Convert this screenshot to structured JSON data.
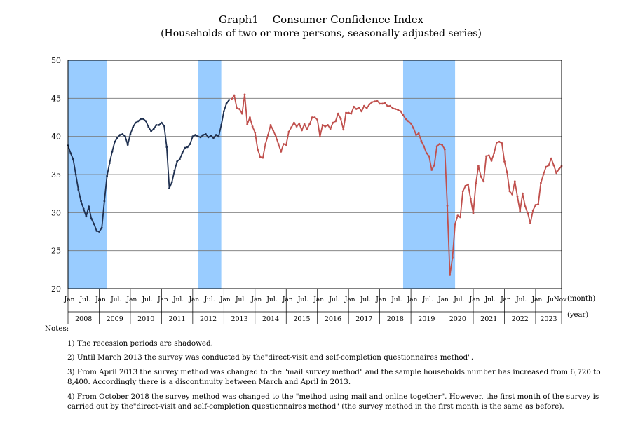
{
  "chart_data": {
    "type": "line",
    "title": "Graph1　 Consumer Confidence Index",
    "subtitle": "(Households of two or more persons, seasonally adjusted series)",
    "xunit": "(month)",
    "yearunit": "(year)",
    "ylim": [
      20,
      50
    ],
    "yticks": [
      20,
      25,
      30,
      35,
      40,
      45,
      50
    ],
    "grid": true,
    "recession_periods": [
      [
        "2008-01",
        "2009-03"
      ],
      [
        "2012-03",
        "2012-11"
      ],
      [
        "2018-10",
        "2020-05"
      ]
    ],
    "years": [
      "2008",
      "2009",
      "2010",
      "2011",
      "2012",
      "2013",
      "2014",
      "2015",
      "2016",
      "2017",
      "2018",
      "2019",
      "2020",
      "2021",
      "2022",
      "2023"
    ],
    "month_labels": [
      "Jan",
      "Jul."
    ],
    "last_month_label": "Nov",
    "series": [
      {
        "color": "#1f3050",
        "points": [
          [
            "2008-01",
            38.8
          ],
          [
            "2008-02",
            37.8
          ],
          [
            "2008-03",
            37.0
          ],
          [
            "2008-04",
            35.0
          ],
          [
            "2008-05",
            33.0
          ],
          [
            "2008-06",
            31.5
          ],
          [
            "2008-07",
            30.5
          ],
          [
            "2008-08",
            29.5
          ],
          [
            "2008-09",
            30.8
          ],
          [
            "2008-10",
            29.2
          ],
          [
            "2008-11",
            28.5
          ],
          [
            "2008-12",
            27.6
          ],
          [
            "2009-01",
            27.5
          ],
          [
            "2009-02",
            28.0
          ],
          [
            "2009-03",
            31.5
          ],
          [
            "2009-04",
            34.8
          ],
          [
            "2009-05",
            36.5
          ],
          [
            "2009-06",
            38.0
          ],
          [
            "2009-07",
            39.3
          ],
          [
            "2009-08",
            39.8
          ],
          [
            "2009-09",
            40.2
          ],
          [
            "2009-10",
            40.3
          ],
          [
            "2009-11",
            40.0
          ],
          [
            "2009-12",
            38.9
          ],
          [
            "2010-01",
            40.3
          ],
          [
            "2010-02",
            41.2
          ],
          [
            "2010-03",
            41.8
          ],
          [
            "2010-04",
            42.0
          ],
          [
            "2010-05",
            42.3
          ],
          [
            "2010-06",
            42.3
          ],
          [
            "2010-07",
            42.0
          ],
          [
            "2010-08",
            41.2
          ],
          [
            "2010-09",
            40.7
          ],
          [
            "2010-10",
            41.0
          ],
          [
            "2010-11",
            41.5
          ],
          [
            "2010-12",
            41.5
          ],
          [
            "2011-01",
            41.8
          ],
          [
            "2011-02",
            41.4
          ],
          [
            "2011-03",
            38.6
          ],
          [
            "2011-04",
            33.2
          ],
          [
            "2011-05",
            34.0
          ],
          [
            "2011-06",
            35.5
          ],
          [
            "2011-07",
            36.7
          ],
          [
            "2011-08",
            37.0
          ],
          [
            "2011-09",
            37.8
          ],
          [
            "2011-10",
            38.5
          ],
          [
            "2011-11",
            38.6
          ],
          [
            "2011-12",
            39.0
          ],
          [
            "2012-01",
            40.0
          ],
          [
            "2012-02",
            40.2
          ],
          [
            "2012-03",
            40.0
          ],
          [
            "2012-04",
            39.9
          ],
          [
            "2012-05",
            40.2
          ],
          [
            "2012-06",
            40.3
          ],
          [
            "2012-07",
            39.9
          ],
          [
            "2012-08",
            40.1
          ],
          [
            "2012-09",
            39.8
          ],
          [
            "2012-10",
            40.2
          ],
          [
            "2012-11",
            40.0
          ],
          [
            "2012-12",
            41.5
          ],
          [
            "2013-01",
            43.3
          ],
          [
            "2013-02",
            44.3
          ],
          [
            "2013-03",
            44.8
          ]
        ]
      },
      {
        "color": "#c0504d",
        "points": [
          [
            "2013-04",
            44.9
          ],
          [
            "2013-05",
            45.4
          ],
          [
            "2013-06",
            43.7
          ],
          [
            "2013-07",
            43.6
          ],
          [
            "2013-08",
            43.0
          ],
          [
            "2013-09",
            45.5
          ],
          [
            "2013-10",
            41.6
          ],
          [
            "2013-11",
            42.5
          ],
          [
            "2013-12",
            41.3
          ],
          [
            "2014-01",
            40.5
          ],
          [
            "2014-02",
            38.3
          ],
          [
            "2014-03",
            37.3
          ],
          [
            "2014-04",
            37.2
          ],
          [
            "2014-05",
            39.0
          ],
          [
            "2014-06",
            40.2
          ],
          [
            "2014-07",
            41.5
          ],
          [
            "2014-08",
            40.8
          ],
          [
            "2014-09",
            40.0
          ],
          [
            "2014-10",
            39.0
          ],
          [
            "2014-11",
            38.0
          ],
          [
            "2014-12",
            39.0
          ],
          [
            "2015-01",
            38.9
          ],
          [
            "2015-02",
            40.6
          ],
          [
            "2015-03",
            41.2
          ],
          [
            "2015-04",
            41.8
          ],
          [
            "2015-05",
            41.3
          ],
          [
            "2015-06",
            41.7
          ],
          [
            "2015-07",
            40.8
          ],
          [
            "2015-08",
            41.6
          ],
          [
            "2015-09",
            41.0
          ],
          [
            "2015-10",
            41.6
          ],
          [
            "2015-11",
            42.5
          ],
          [
            "2015-12",
            42.5
          ],
          [
            "2016-01",
            42.2
          ],
          [
            "2016-02",
            40.0
          ],
          [
            "2016-03",
            41.5
          ],
          [
            "2016-04",
            41.3
          ],
          [
            "2016-05",
            41.5
          ],
          [
            "2016-06",
            41.0
          ],
          [
            "2016-07",
            41.8
          ],
          [
            "2016-08",
            42.0
          ],
          [
            "2016-09",
            43.0
          ],
          [
            "2016-10",
            42.3
          ],
          [
            "2016-11",
            40.9
          ],
          [
            "2016-12",
            43.1
          ],
          [
            "2017-01",
            43.1
          ],
          [
            "2017-02",
            43.0
          ],
          [
            "2017-03",
            43.9
          ],
          [
            "2017-04",
            43.6
          ],
          [
            "2017-05",
            43.8
          ],
          [
            "2017-06",
            43.3
          ],
          [
            "2017-07",
            44.0
          ],
          [
            "2017-08",
            43.7
          ],
          [
            "2017-09",
            44.2
          ],
          [
            "2017-10",
            44.5
          ],
          [
            "2017-11",
            44.6
          ],
          [
            "2017-12",
            44.7
          ],
          [
            "2018-01",
            44.3
          ],
          [
            "2018-02",
            44.3
          ],
          [
            "2018-03",
            44.4
          ],
          [
            "2018-04",
            44.0
          ],
          [
            "2018-05",
            44.0
          ],
          [
            "2018-06",
            43.7
          ],
          [
            "2018-07",
            43.6
          ],
          [
            "2018-08",
            43.5
          ],
          [
            "2018-09",
            43.3
          ],
          [
            "2018-10",
            42.8
          ],
          [
            "2018-11",
            42.3
          ],
          [
            "2018-12",
            42.0
          ],
          [
            "2019-01",
            41.7
          ],
          [
            "2019-02",
            41.1
          ],
          [
            "2019-03",
            40.2
          ],
          [
            "2019-04",
            40.4
          ],
          [
            "2019-05",
            39.4
          ],
          [
            "2019-06",
            38.7
          ],
          [
            "2019-07",
            37.8
          ],
          [
            "2019-08",
            37.4
          ],
          [
            "2019-09",
            35.6
          ],
          [
            "2019-10",
            36.2
          ],
          [
            "2019-11",
            38.7
          ],
          [
            "2019-12",
            39.0
          ],
          [
            "2020-01",
            38.9
          ],
          [
            "2020-02",
            38.3
          ],
          [
            "2020-03",
            30.9
          ],
          [
            "2020-04",
            21.8
          ],
          [
            "2020-05",
            24.1
          ],
          [
            "2020-06",
            28.5
          ],
          [
            "2020-07",
            29.6
          ],
          [
            "2020-08",
            29.4
          ],
          [
            "2020-09",
            32.8
          ],
          [
            "2020-10",
            33.5
          ],
          [
            "2020-11",
            33.7
          ],
          [
            "2020-12",
            31.8
          ],
          [
            "2021-01",
            29.9
          ],
          [
            "2021-02",
            33.8
          ],
          [
            "2021-03",
            36.1
          ],
          [
            "2021-04",
            34.7
          ],
          [
            "2021-05",
            34.1
          ],
          [
            "2021-06",
            37.4
          ],
          [
            "2021-07",
            37.5
          ],
          [
            "2021-08",
            36.8
          ],
          [
            "2021-09",
            37.8
          ],
          [
            "2021-10",
            39.2
          ],
          [
            "2021-11",
            39.3
          ],
          [
            "2021-12",
            39.1
          ],
          [
            "2022-01",
            36.7
          ],
          [
            "2022-02",
            35.3
          ],
          [
            "2022-03",
            32.8
          ],
          [
            "2022-04",
            32.4
          ],
          [
            "2022-05",
            34.1
          ],
          [
            "2022-06",
            32.1
          ],
          [
            "2022-07",
            30.2
          ],
          [
            "2022-08",
            32.5
          ],
          [
            "2022-09",
            30.8
          ],
          [
            "2022-10",
            29.9
          ],
          [
            "2022-11",
            28.6
          ],
          [
            "2022-12",
            30.3
          ],
          [
            "2023-01",
            31.0
          ],
          [
            "2023-02",
            31.1
          ],
          [
            "2023-03",
            33.9
          ],
          [
            "2023-04",
            35.0
          ],
          [
            "2023-05",
            36.0
          ],
          [
            "2023-06",
            36.2
          ],
          [
            "2023-07",
            37.1
          ],
          [
            "2023-08",
            36.2
          ],
          [
            "2023-09",
            35.2
          ],
          [
            "2023-10",
            35.7
          ],
          [
            "2023-11",
            36.1
          ]
        ]
      }
    ]
  },
  "notes": {
    "heading": "Notes:",
    "items": [
      "1) The recession periods are shadowed.",
      "2) Until March 2013 the survey was conducted by the\"direct-visit and self-completion questionnaires method\".",
      "3) From April 2013 the survey method was changed to the \"mail survey method\" and the sample households number has increased from 6,720 to 8,400. Accordingly there is a discontinuity between March and April in 2013.",
      "4) From October 2018 the survey method was changed to the \"method using mail and online together\". However, the first month of the survey is carried out by the\"direct-visit and self-completion questionnaires method\" (the survey method in the first month is the same as before)."
    ]
  }
}
